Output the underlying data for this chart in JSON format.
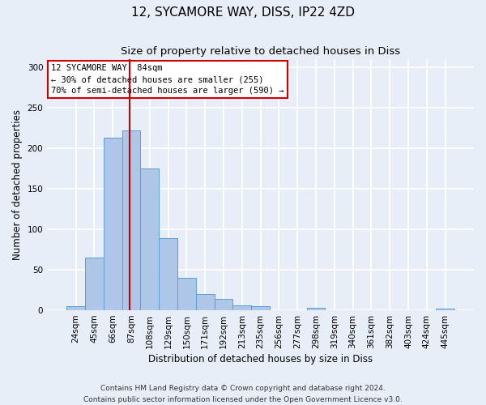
{
  "title": "12, SYCAMORE WAY, DISS, IP22 4ZD",
  "subtitle": "Size of property relative to detached houses in Diss",
  "xlabel": "Distribution of detached houses by size in Diss",
  "ylabel": "Number of detached properties",
  "footnote": "Contains HM Land Registry data © Crown copyright and database right 2024.\nContains public sector information licensed under the Open Government Licence v3.0.",
  "bin_labels": [
    "24sqm",
    "45sqm",
    "66sqm",
    "87sqm",
    "108sqm",
    "129sqm",
    "150sqm",
    "171sqm",
    "192sqm",
    "213sqm",
    "235sqm",
    "256sqm",
    "277sqm",
    "298sqm",
    "319sqm",
    "340sqm",
    "361sqm",
    "382sqm",
    "403sqm",
    "424sqm",
    "445sqm"
  ],
  "bar_heights": [
    5,
    65,
    213,
    222,
    175,
    89,
    40,
    20,
    14,
    6,
    5,
    0,
    0,
    3,
    0,
    0,
    0,
    0,
    0,
    0,
    2
  ],
  "bar_color": "#aec6e8",
  "bar_edge_color": "#5a9fd4",
  "vline_bin_index": 2.9,
  "annotation_text": "12 SYCAMORE WAY: 84sqm\n← 30% of detached houses are smaller (255)\n70% of semi-detached houses are larger (590) →",
  "annotation_box_color": "#ffffff",
  "annotation_box_edge": "#cc0000",
  "annotation_text_color": "#000000",
  "vline_color": "#cc0000",
  "ylim": [
    0,
    310
  ],
  "yticks": [
    0,
    50,
    100,
    150,
    200,
    250,
    300
  ],
  "background_color": "#e8eef8",
  "grid_color": "#ffffff",
  "title_fontsize": 11,
  "subtitle_fontsize": 9.5,
  "axis_label_fontsize": 8.5,
  "tick_fontsize": 7.5,
  "annotation_fontsize": 7.5,
  "footnote_fontsize": 6.5
}
